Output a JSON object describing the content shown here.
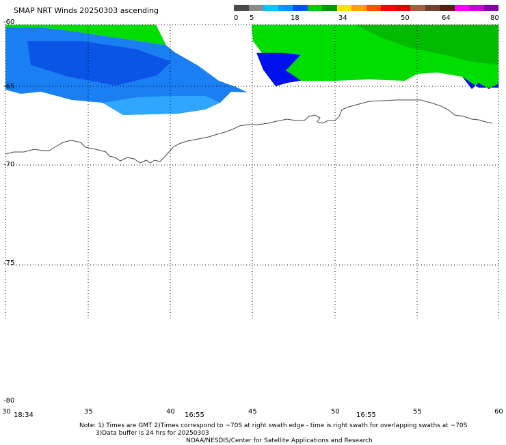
{
  "title": "SMAP NRT Winds 20250303 ascending",
  "colorbar": {
    "tick_labels": [
      "0",
      "5",
      "18",
      "34",
      "50",
      "64",
      "80"
    ],
    "colors": [
      "#4a4a4a",
      "#8a8a8a",
      "#00c8ff",
      "#0096ff",
      "#0050ff",
      "#00cc00",
      "#009900",
      "#ffe000",
      "#ffa000",
      "#ff5000",
      "#ff0000",
      "#e00000",
      "#a06040",
      "#704030",
      "#502010",
      "#ff00ff",
      "#cc00cc",
      "#8000a0"
    ]
  },
  "axes": {
    "lat_labels": [
      "-60",
      "-65",
      "-70",
      "-75",
      "-80"
    ],
    "lon_labels": [
      "30",
      "35",
      "40",
      "45",
      "50",
      "55",
      "60"
    ]
  },
  "swath_times": [
    "18:34",
    "16:55",
    "16:55"
  ],
  "notes": {
    "line1": "Note: 1) Times are GMT 2)Times correspond to ~70S at right swath edge - time is right swath for overlapping swaths at ~70S",
    "line2": "3)Data buffer is 24 hrs for 20250303",
    "line3": "NOAA/NESDIS/Center for Satellite Applications and Research"
  }
}
